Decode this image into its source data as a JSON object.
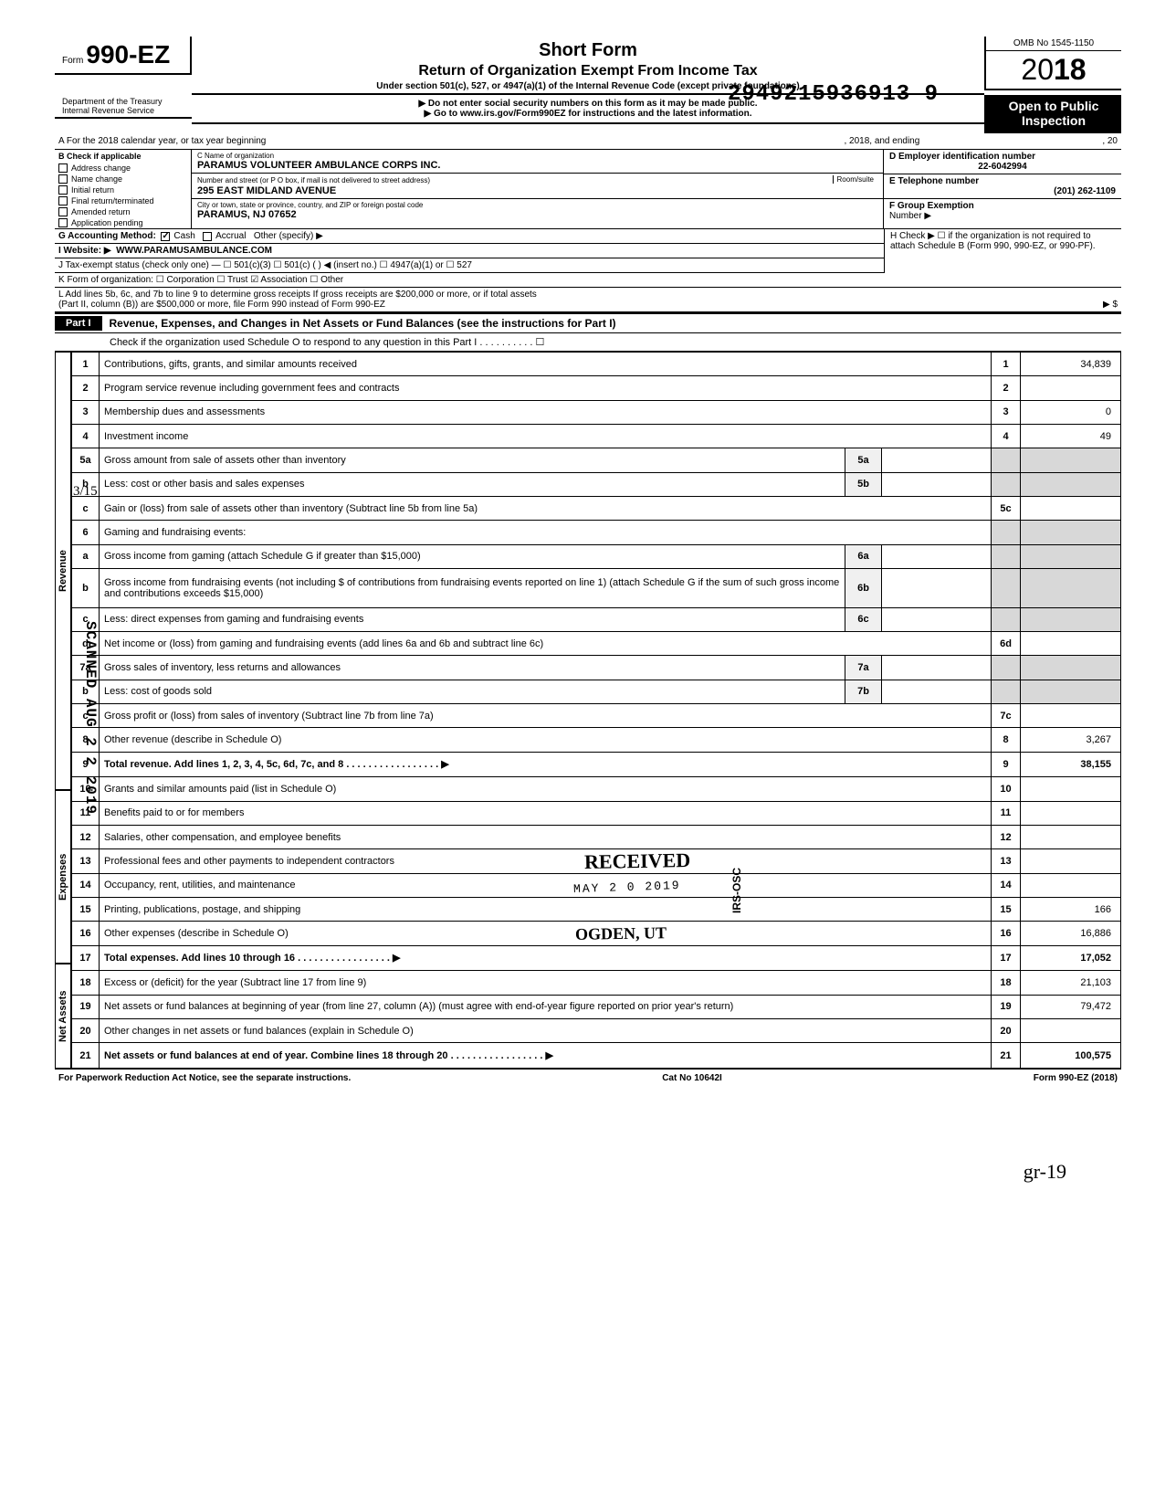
{
  "colors": {
    "black": "#000000",
    "white": "#ffffff",
    "shade": "#d8d8d8"
  },
  "doc_id": "2949215936913  9",
  "omb": "OMB No 1545-1150",
  "year": "18",
  "header": {
    "form_label": "Form",
    "form_number": "990-EZ",
    "title1": "Short Form",
    "title2": "Return of Organization Exempt From Income Tax",
    "desc": "Under section 501(c), 527, or 4947(a)(1) of the Internal Revenue Code (except private foundations)",
    "notice1": "▶ Do not enter social security numbers on this form as it may be made public.",
    "notice2": "▶ Go to www.irs.gov/Form990EZ for instructions and the latest information.",
    "inspection1": "Open to Public",
    "inspection2": "Inspection",
    "dept1": "Department of the Treasury",
    "dept2": "Internal Revenue Service"
  },
  "line_a": {
    "prefix": "A  For the 2018 calendar year, or tax year beginning",
    "mid": ", 2018, and ending",
    "end": ", 20"
  },
  "section_b": {
    "hdr": "B  Check if applicable",
    "items": [
      "Address change",
      "Name change",
      "Initial return",
      "Final return/terminated",
      "Amended return",
      "Application pending"
    ]
  },
  "section_c": {
    "name_label": "C  Name of organization",
    "name": "PARAMUS VOLUNTEER AMBULANCE CORPS INC.",
    "street_label": "Number and street (or P O box, if mail is not delivered to street address)",
    "room_label": "Room/suite",
    "street": "295 EAST MIDLAND AVENUE",
    "city_label": "City or town, state or province, country, and ZIP or foreign postal code",
    "city": "PARAMUS, NJ 07652"
  },
  "section_right": {
    "d_label": "D Employer identification number",
    "d_val": "22-6042994",
    "e_label": "E Telephone number",
    "e_val": "(201) 262-1109",
    "f_label": "F Group Exemption",
    "f_label2": "Number ▶"
  },
  "line_g": {
    "label": "G  Accounting Method:",
    "cash": "Cash",
    "accrual": "Accrual",
    "other": "Other (specify) ▶"
  },
  "line_h": {
    "label": "H Check ▶ ☐ if the organization is not required to attach Schedule B (Form 990, 990-EZ, or 990-PF)."
  },
  "line_i": {
    "label": "I   Website: ▶",
    "val": "WWW.PARAMUSAMBULANCE.COM"
  },
  "line_j": {
    "label": "J  Tax-exempt status (check only one) — ☐ 501(c)(3)    ☐ 501(c) (        ) ◀ (insert no.)  ☐ 4947(a)(1) or   ☐ 527"
  },
  "line_k": {
    "label": "K  Form of organization:   ☐ Corporation       ☐ Trust            ☑ Association      ☐ Other"
  },
  "line_l": {
    "text1": "L  Add lines 5b, 6c, and 7b to line 9 to determine gross receipts  If gross receipts are $200,000 or more, or if total assets",
    "text2": "(Part II, column (B)) are $500,000 or more, file Form 990 instead of Form 990-EZ",
    "arrow": "▶   $"
  },
  "part1": {
    "label": "Part I",
    "title": "Revenue, Expenses, and Changes in Net Assets or Fund Balances (see the instructions for Part I)",
    "check_line": "Check if the organization used Schedule O to respond to any question in this Part I . . . . . . . . . . ☐"
  },
  "sidebars": {
    "revenue": "Revenue",
    "expenses": "Expenses",
    "netassets": "Net Assets"
  },
  "rows": [
    {
      "n": "1",
      "t": "Contributions, gifts, grants, and similar amounts received",
      "rn": "1",
      "rv": "34,839"
    },
    {
      "n": "2",
      "t": "Program service revenue including government fees and contracts",
      "rn": "2",
      "rv": ""
    },
    {
      "n": "3",
      "t": "Membership dues and assessments",
      "rn": "3",
      "rv": "0"
    },
    {
      "n": "4",
      "t": "Investment income",
      "rn": "4",
      "rv": "49"
    },
    {
      "n": "5a",
      "t": "Gross amount from sale of assets other than inventory",
      "mn": "5a",
      "mv": "",
      "shaded": true
    },
    {
      "n": "b",
      "t": "Less: cost or other basis and sales expenses",
      "mn": "5b",
      "mv": "",
      "shaded": true
    },
    {
      "n": "c",
      "t": "Gain or (loss) from sale of assets other than inventory (Subtract line 5b from line 5a)",
      "rn": "5c",
      "rv": ""
    },
    {
      "n": "6",
      "t": "Gaming and fundraising events:",
      "shaded": true
    },
    {
      "n": "a",
      "t": "Gross income from gaming (attach Schedule G if greater than $15,000)",
      "mn": "6a",
      "mv": "",
      "shaded": true
    },
    {
      "n": "b",
      "t": "Gross income from fundraising events (not including  $                     of contributions from fundraising events reported on line 1) (attach Schedule G if the sum of such gross income and contributions exceeds $15,000)",
      "mn": "6b",
      "mv": "",
      "shaded": true
    },
    {
      "n": "c",
      "t": "Less: direct expenses from gaming and fundraising events",
      "mn": "6c",
      "mv": "",
      "shaded": true
    },
    {
      "n": "d",
      "t": "Net income or (loss) from gaming and fundraising events (add lines 6a and 6b and subtract line 6c)",
      "rn": "6d",
      "rv": ""
    },
    {
      "n": "7a",
      "t": "Gross sales of inventory, less returns and allowances",
      "mn": "7a",
      "mv": "",
      "shaded": true
    },
    {
      "n": "b",
      "t": "Less: cost of goods sold",
      "mn": "7b",
      "mv": "",
      "shaded": true
    },
    {
      "n": "c",
      "t": "Gross profit or (loss) from sales of inventory (Subtract line 7b from line 7a)",
      "rn": "7c",
      "rv": ""
    },
    {
      "n": "8",
      "t": "Other revenue (describe in Schedule O)",
      "rn": "8",
      "rv": "3,267"
    },
    {
      "n": "9",
      "t": "Total revenue. Add lines 1, 2, 3, 4, 5c, 6d, 7c, and 8",
      "bold": true,
      "rn": "9",
      "rv": "38,155",
      "arrow": true
    },
    {
      "n": "10",
      "t": "Grants and similar amounts paid (list in Schedule O)",
      "rn": "10",
      "rv": ""
    },
    {
      "n": "11",
      "t": "Benefits paid to or for members",
      "rn": "11",
      "rv": ""
    },
    {
      "n": "12",
      "t": "Salaries, other compensation, and employee benefits",
      "rn": "12",
      "rv": ""
    },
    {
      "n": "13",
      "t": "Professional fees and other payments to independent contractors",
      "rn": "13",
      "rv": ""
    },
    {
      "n": "14",
      "t": "Occupancy, rent, utilities, and maintenance",
      "rn": "14",
      "rv": ""
    },
    {
      "n": "15",
      "t": "Printing, publications, postage, and shipping",
      "rn": "15",
      "rv": "166"
    },
    {
      "n": "16",
      "t": "Other expenses (describe in Schedule O)",
      "rn": "16",
      "rv": "16,886"
    },
    {
      "n": "17",
      "t": "Total expenses. Add lines 10 through 16",
      "bold": true,
      "rn": "17",
      "rv": "17,052",
      "arrow": true
    },
    {
      "n": "18",
      "t": "Excess or (deficit) for the year (Subtract line 17 from line 9)",
      "rn": "18",
      "rv": "21,103"
    },
    {
      "n": "19",
      "t": "Net assets or fund balances at beginning of year (from line 27, column (A)) (must agree with end-of-year figure reported on prior year's return)",
      "rn": "19",
      "rv": "79,472"
    },
    {
      "n": "20",
      "t": "Other changes in net assets or fund balances (explain in Schedule O)",
      "rn": "20",
      "rv": ""
    },
    {
      "n": "21",
      "t": "Net assets or fund balances at end of year. Combine lines 18 through 20",
      "bold": true,
      "rn": "21",
      "rv": "100,575",
      "arrow": true
    }
  ],
  "stamps": {
    "scanned": "SCANNED AUG 2 2 2019",
    "received": "RECEIVED",
    "received_date": "MAY 2 0 2019",
    "received_loc": "OGDEN, UT",
    "irs_osc": "IRS-OSC"
  },
  "footer": {
    "left": "For Paperwork Reduction Act Notice, see the separate instructions.",
    "mid": "Cat No 10642I",
    "right": "Form 990-EZ (2018)"
  },
  "handwritten": {
    "left_margin": "3/15",
    "sig": "gr-19"
  }
}
